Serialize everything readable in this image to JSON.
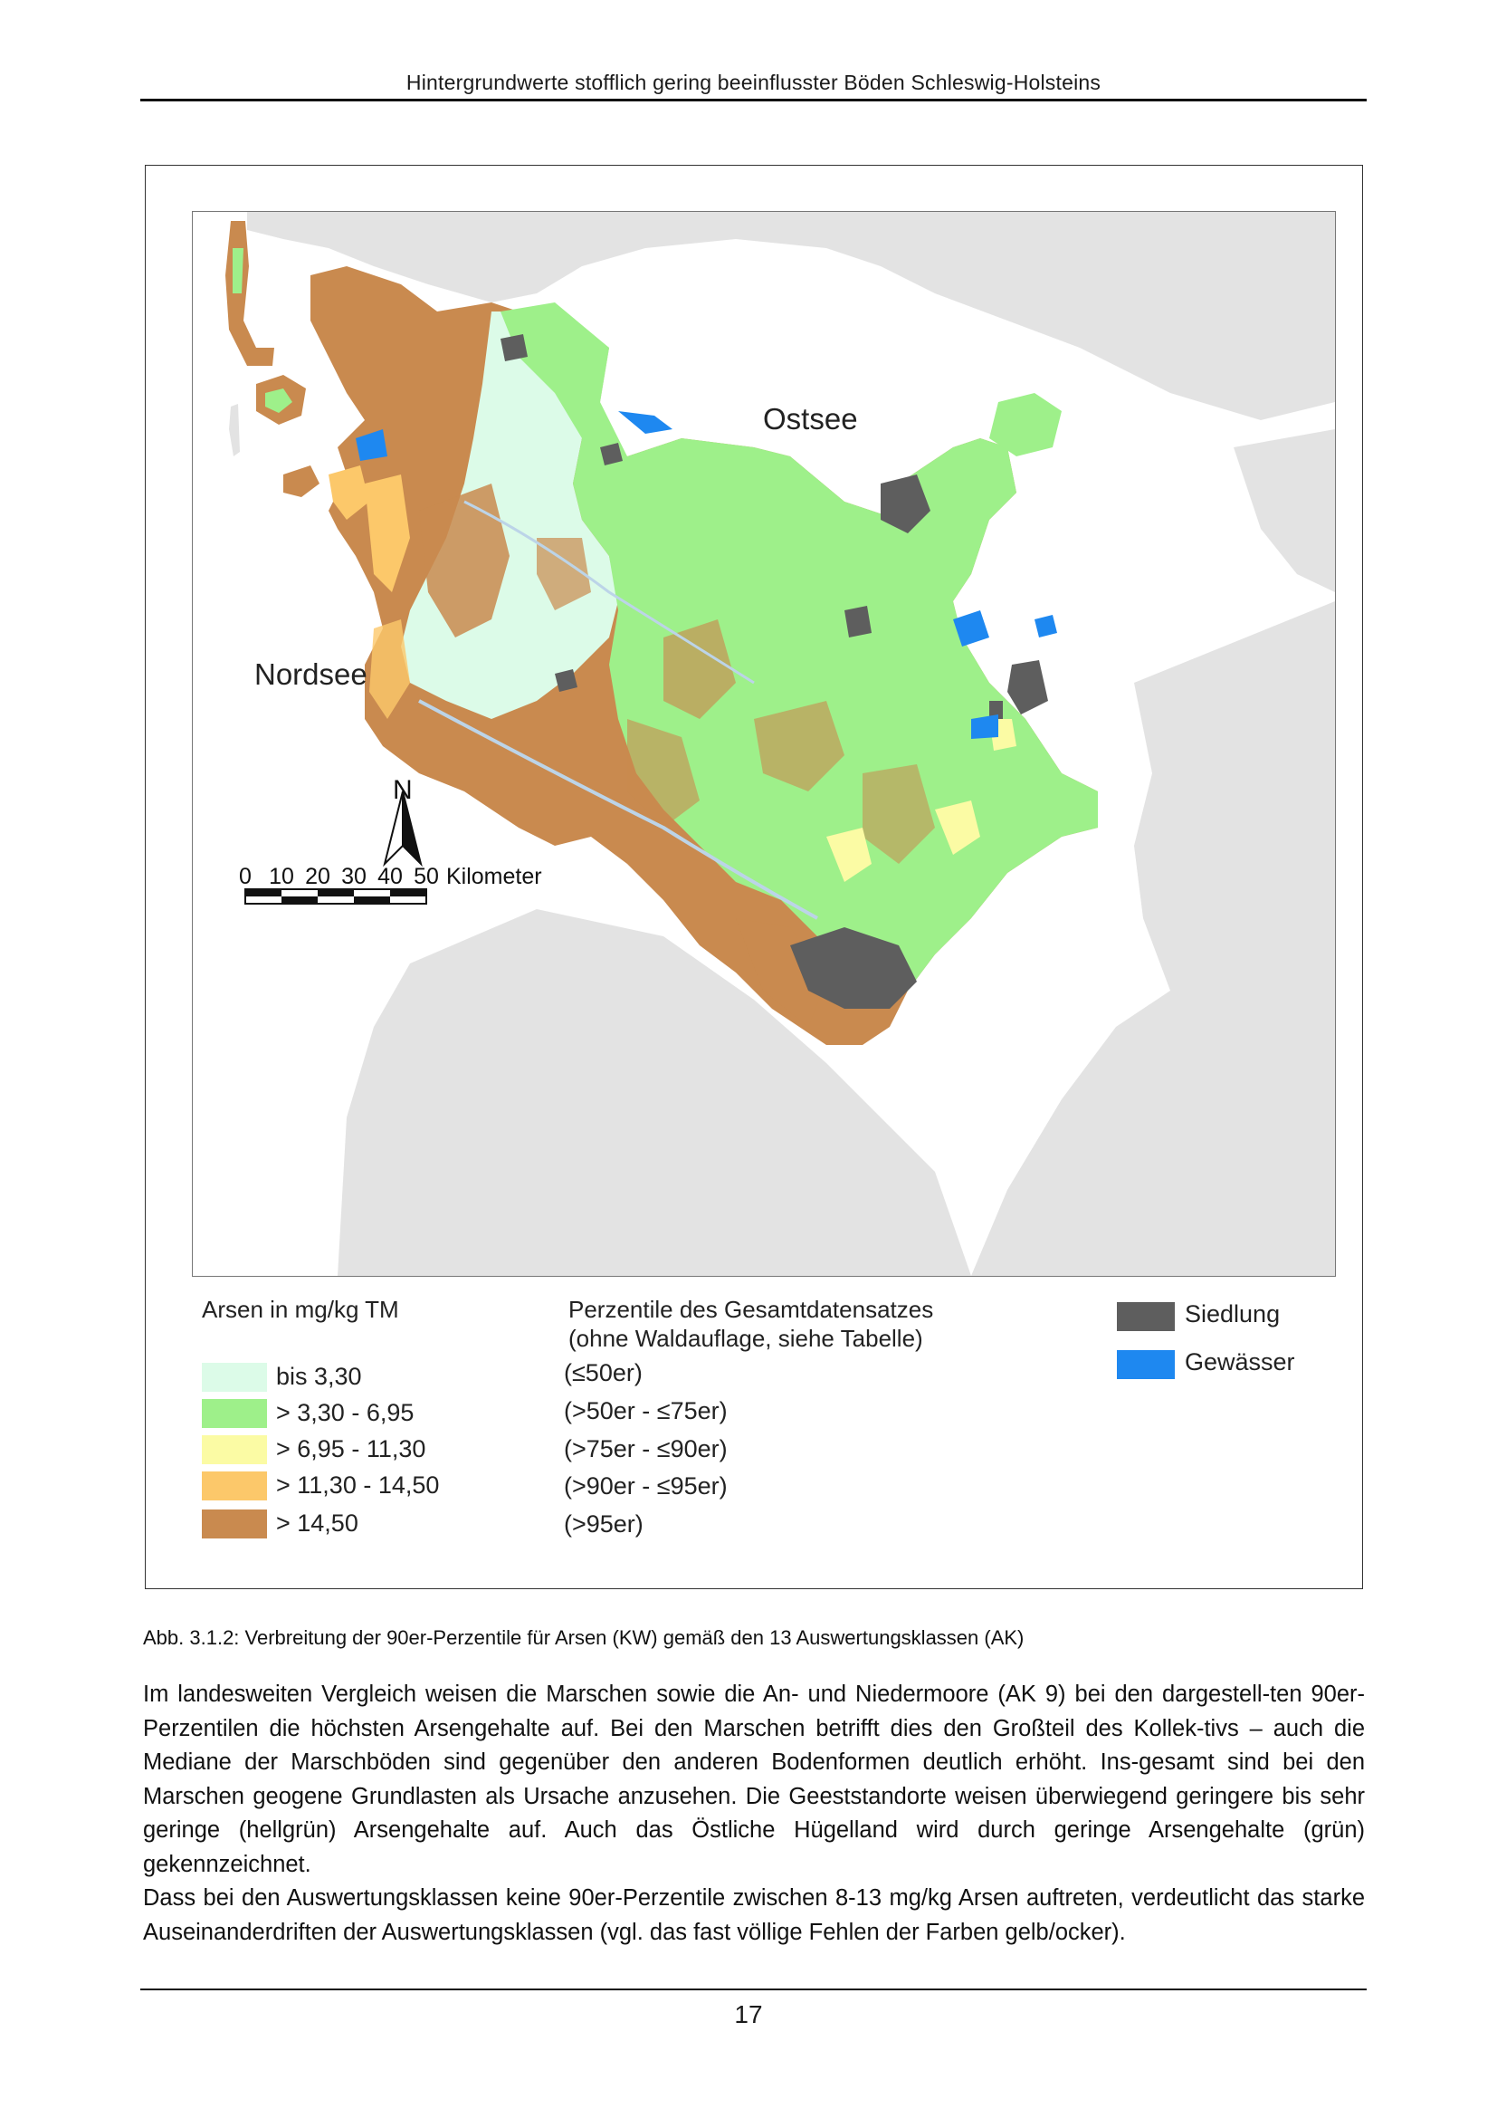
{
  "header": {
    "title": "Hintergrundwerte stofflich gering beeinflusster Böden Schleswig-Holsteins"
  },
  "map": {
    "sea_labels": {
      "east": "Ostsee",
      "west": "Nordsee"
    },
    "north_arrow": {
      "label": "N"
    },
    "scale_bar": {
      "ticks": [
        "0",
        "10",
        "20",
        "30",
        "40",
        "50"
      ],
      "unit": "Kilometer"
    },
    "colors": {
      "land_grey": "#e3e3e3",
      "sea": "#ffffff",
      "settlement": "#5e5e5e",
      "water": "#1e88f0"
    }
  },
  "legend": {
    "arsen_title": "Arsen in mg/kg TM",
    "percentile_title_line1": "Perzentile des Gesamtdatensatzes",
    "percentile_title_line2": "(ohne Waldauflage, siehe Tabelle)",
    "classes": [
      {
        "label": "bis 3,30",
        "percentile": "(≤50er)",
        "color": "#dcfbe8"
      },
      {
        "label": "> 3,30 - 6,95",
        "percentile": "(>50er  -  ≤75er)",
        "color": "#9ef08a"
      },
      {
        "label": "> 6,95 - 11,30",
        "percentile": "(>75er  -  ≤90er)",
        "color": "#fbfba4"
      },
      {
        "label": "> 11,30 - 14,50",
        "percentile": "(>90er  -  ≤95er)",
        "color": "#fcc86a"
      },
      {
        "label": "> 14,50",
        "percentile": "(>95er)",
        "color": "#c98a4f"
      }
    ],
    "other": [
      {
        "label": "Siedlung",
        "color": "#5e5e5e"
      },
      {
        "label": "Gewässer",
        "color": "#1e88f0"
      }
    ]
  },
  "caption": "Abb. 3.1.2: Verbreitung der 90er-Perzentile für Arsen (KW) gemäß den 13 Auswertungsklassen (AK)",
  "body": {
    "paragraph1": "Im landesweiten Vergleich weisen die Marschen sowie die An- und Niedermoore (AK 9) bei den dargestell-ten 90er-Perzentilen die höchsten Arsengehalte auf. Bei den Marschen betrifft dies den Großteil des Kollek-tivs – auch die Mediane der Marschböden sind gegenüber den anderen Bodenformen deutlich erhöht. Ins-gesamt sind bei den Marschen geogene Grundlasten als Ursache anzusehen. Die Geeststandorte weisen überwiegend geringere bis sehr geringe (hellgrün) Arsengehalte auf. Auch das Östliche Hügelland wird durch geringe Arsengehalte (grün) gekennzeichnet.",
    "paragraph2": "Dass bei den Auswertungsklassen keine 90er-Perzentile zwischen 8-13 mg/kg Arsen auftreten, verdeutlicht das starke Auseinanderdriften der Auswertungsklassen (vgl. das fast völlige Fehlen der Farben gelb/ocker)."
  },
  "page_number": "17"
}
